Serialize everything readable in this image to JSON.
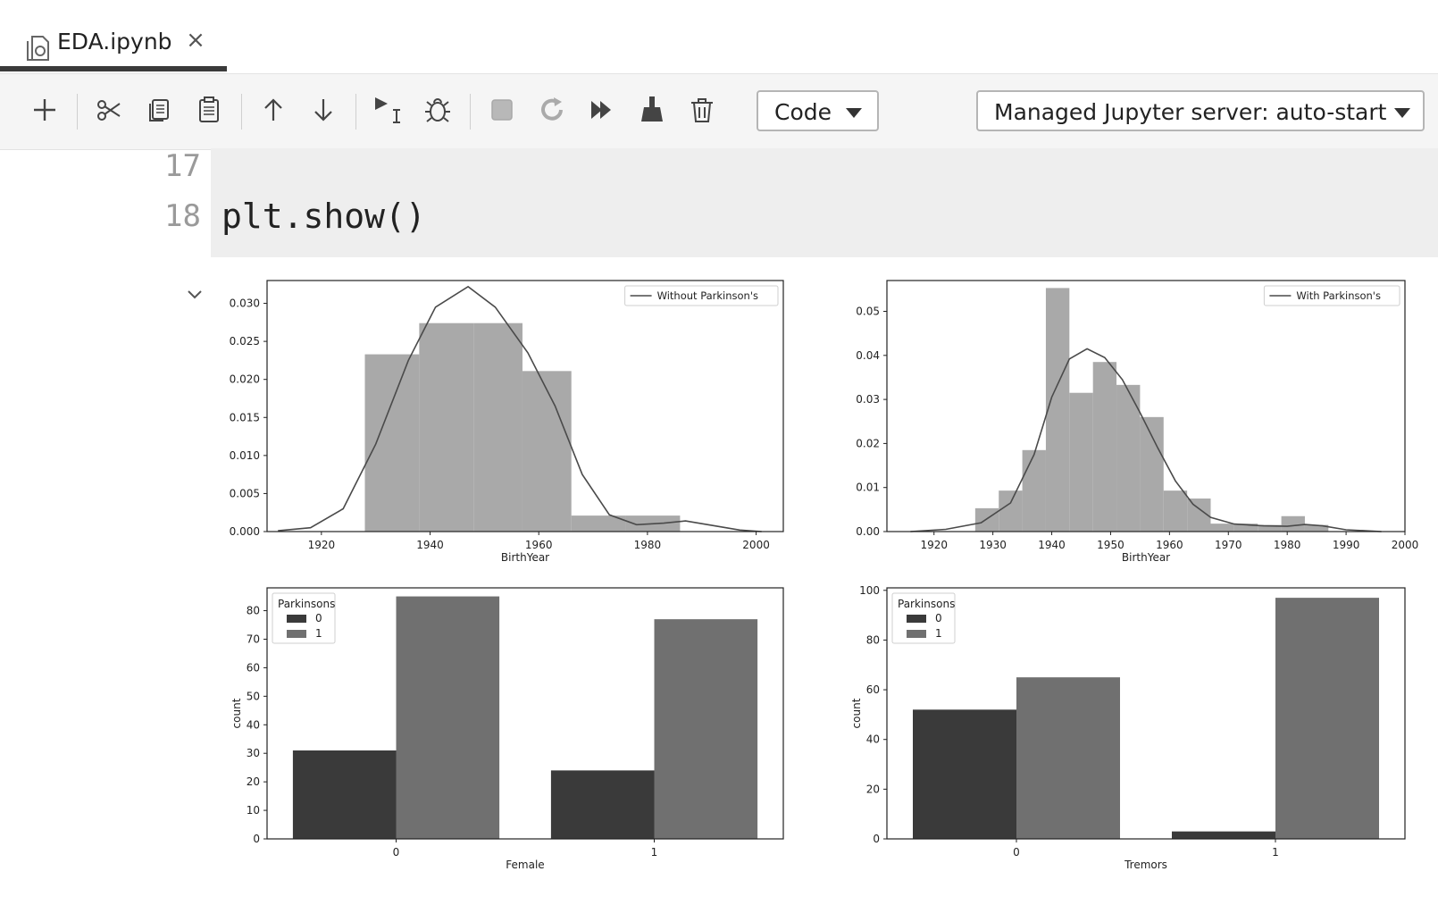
{
  "tab": {
    "title": "EDA.ipynb",
    "close": "×",
    "icon": "notebook-icon"
  },
  "toolbar": {
    "buttons": [
      "add-cell-icon",
      "cut-icon",
      "copy-icon",
      "paste-icon",
      "move-up-icon",
      "move-down-icon",
      "run-cursor-icon",
      "debug-icon",
      "stop-icon",
      "restart-icon",
      "run-all-icon",
      "clear-icon",
      "delete-icon"
    ],
    "cell_type": "Code",
    "server": "Managed Jupyter server: auto-start"
  },
  "code": {
    "lines": [
      {
        "number": "17",
        "text": ""
      },
      {
        "number": "18",
        "text": "plt.show()"
      }
    ]
  },
  "chart_data": [
    {
      "type": "bar",
      "subtype": "histogram+kde",
      "legend": "Without Parkinson's",
      "xlabel": "BirthYear",
      "xlim": [
        1910,
        2005
      ],
      "ylim": [
        0,
        0.033
      ],
      "xticks": [
        1920,
        1940,
        1960,
        1980,
        2000
      ],
      "yticks": [
        "0.000",
        "0.005",
        "0.010",
        "0.015",
        "0.020",
        "0.025",
        "0.030"
      ],
      "bins": [
        {
          "x0": 1928,
          "x1": 1938,
          "y": 0.0233
        },
        {
          "x0": 1938,
          "x1": 1948,
          "y": 0.0274
        },
        {
          "x0": 1948,
          "x1": 1957,
          "y": 0.0274
        },
        {
          "x0": 1957,
          "x1": 1966,
          "y": 0.0211
        },
        {
          "x0": 1966,
          "x1": 1976,
          "y": 0.0021
        },
        {
          "x0": 1976,
          "x1": 1986,
          "y": 0.0021
        }
      ],
      "kde": [
        [
          1912,
          0.0001
        ],
        [
          1918,
          0.0005
        ],
        [
          1924,
          0.003
        ],
        [
          1930,
          0.0115
        ],
        [
          1936,
          0.0225
        ],
        [
          1941,
          0.0295
        ],
        [
          1947,
          0.0322
        ],
        [
          1952,
          0.0295
        ],
        [
          1958,
          0.0235
        ],
        [
          1963,
          0.0165
        ],
        [
          1968,
          0.0075
        ],
        [
          1973,
          0.0022
        ],
        [
          1978,
          0.0009
        ],
        [
          1983,
          0.0011
        ],
        [
          1987,
          0.0014
        ],
        [
          1992,
          0.0008
        ],
        [
          1997,
          0.0002
        ],
        [
          2001,
          0.0
        ]
      ]
    },
    {
      "type": "bar",
      "subtype": "histogram+kde",
      "legend": "With Parkinson's",
      "xlabel": "BirthYear",
      "xlim": [
        1912,
        2000
      ],
      "ylim": [
        0,
        0.057
      ],
      "xticks": [
        1920,
        1930,
        1940,
        1950,
        1960,
        1970,
        1980,
        1990,
        2000
      ],
      "yticks": [
        "0.00",
        "0.01",
        "0.02",
        "0.03",
        "0.04",
        "0.05"
      ],
      "bins": [
        {
          "x0": 1927,
          "x1": 1931,
          "y": 0.0053
        },
        {
          "x0": 1931,
          "x1": 1935,
          "y": 0.0093
        },
        {
          "x0": 1935,
          "x1": 1939,
          "y": 0.0185
        },
        {
          "x0": 1939,
          "x1": 1943,
          "y": 0.0553
        },
        {
          "x0": 1943,
          "x1": 1947,
          "y": 0.0315
        },
        {
          "x0": 1947,
          "x1": 1951,
          "y": 0.0385
        },
        {
          "x0": 1951,
          "x1": 1955,
          "y": 0.0333
        },
        {
          "x0": 1955,
          "x1": 1959,
          "y": 0.026
        },
        {
          "x0": 1959,
          "x1": 1963,
          "y": 0.0093
        },
        {
          "x0": 1963,
          "x1": 1967,
          "y": 0.0075
        },
        {
          "x0": 1967,
          "x1": 1971,
          "y": 0.0018
        },
        {
          "x0": 1971,
          "x1": 1975,
          "y": 0.0018
        },
        {
          "x0": 1975,
          "x1": 1979,
          "y": 0.0015
        },
        {
          "x0": 1979,
          "x1": 1983,
          "y": 0.0035
        },
        {
          "x0": 1983,
          "x1": 1987,
          "y": 0.0015
        }
      ],
      "kde": [
        [
          1916,
          0.0
        ],
        [
          1922,
          0.0005
        ],
        [
          1928,
          0.002
        ],
        [
          1933,
          0.0065
        ],
        [
          1937,
          0.0175
        ],
        [
          1940,
          0.0305
        ],
        [
          1943,
          0.0392
        ],
        [
          1946,
          0.0415
        ],
        [
          1949,
          0.0395
        ],
        [
          1952,
          0.0345
        ],
        [
          1955,
          0.027
        ],
        [
          1958,
          0.019
        ],
        [
          1961,
          0.0115
        ],
        [
          1964,
          0.0062
        ],
        [
          1967,
          0.0032
        ],
        [
          1971,
          0.0017
        ],
        [
          1976,
          0.0013
        ],
        [
          1980,
          0.0012
        ],
        [
          1983,
          0.0016
        ],
        [
          1986,
          0.0013
        ],
        [
          1990,
          0.0004
        ],
        [
          1996,
          0.0
        ]
      ]
    },
    {
      "type": "bar",
      "xlabel": "Female",
      "ylabel": "count",
      "ylim": [
        0,
        88
      ],
      "yticks": [
        0,
        10,
        20,
        30,
        40,
        50,
        60,
        70,
        80
      ],
      "categories": [
        "0",
        "1"
      ],
      "legend_title": "Parkinsons",
      "series": [
        {
          "name": "0",
          "color": "#3a3a3a",
          "values": [
            31,
            24
          ]
        },
        {
          "name": "1",
          "color": "#707070",
          "values": [
            85,
            77
          ]
        }
      ]
    },
    {
      "type": "bar",
      "xlabel": "Tremors",
      "ylabel": "count",
      "ylim": [
        0,
        101
      ],
      "yticks": [
        0,
        20,
        40,
        60,
        80,
        100
      ],
      "categories": [
        "0",
        "1"
      ],
      "legend_title": "Parkinsons",
      "series": [
        {
          "name": "0",
          "color": "#3a3a3a",
          "values": [
            52,
            3
          ]
        },
        {
          "name": "1",
          "color": "#707070",
          "values": [
            65,
            97
          ]
        }
      ]
    }
  ]
}
